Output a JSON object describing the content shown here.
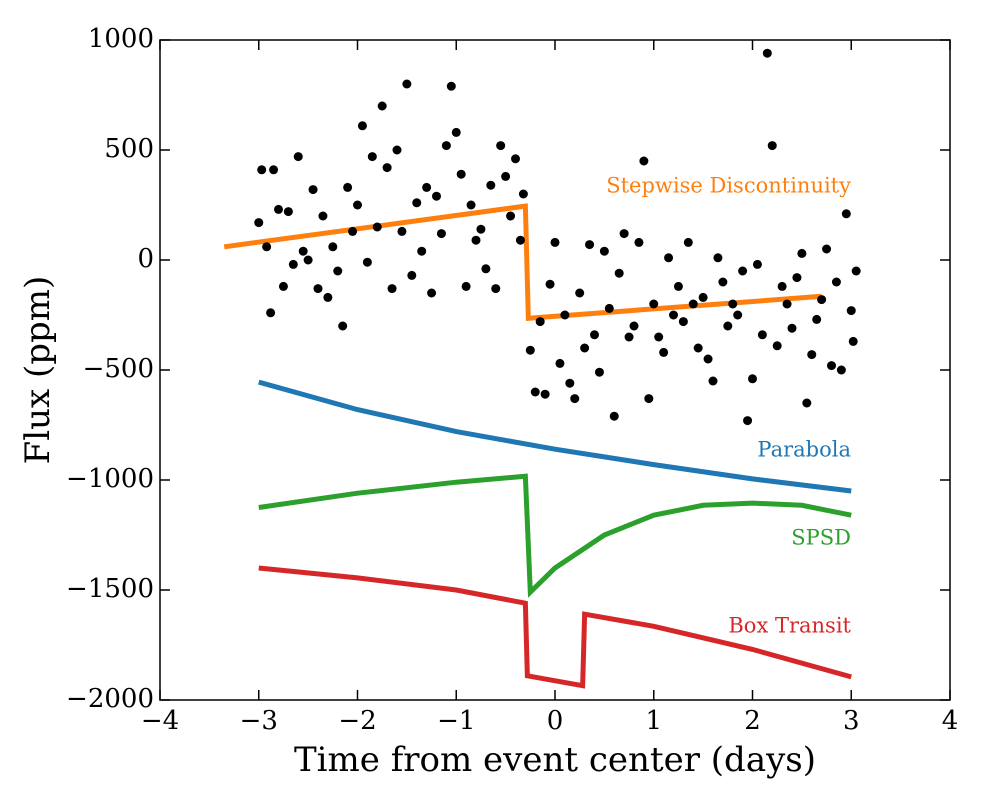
{
  "chart_data": {
    "type": "scatter",
    "xlabel": "Time from event center (days)",
    "ylabel": "Flux (ppm)",
    "xlim": [
      -4,
      4
    ],
    "ylim": [
      -2000,
      1000
    ],
    "xticks": [
      {
        "value": -4,
        "label": "−4"
      },
      {
        "value": -3,
        "label": "−3"
      },
      {
        "value": -2,
        "label": "−2"
      },
      {
        "value": -1,
        "label": "−1"
      },
      0,
      1,
      2,
      3,
      4
    ],
    "yticks": [
      {
        "value": -2000,
        "label": "−2000"
      },
      {
        "value": -1500,
        "label": "−1500"
      },
      {
        "value": -1000,
        "label": "−1000"
      },
      {
        "value": -500,
        "label": "−500"
      },
      0,
      500,
      1000
    ],
    "points": {
      "color": "#000000",
      "x": [
        -3.0,
        -2.97,
        -2.92,
        -2.88,
        -2.85,
        -2.8,
        -2.75,
        -2.7,
        -2.65,
        -2.6,
        -2.55,
        -2.5,
        -2.45,
        -2.4,
        -2.35,
        -2.3,
        -2.25,
        -2.2,
        -2.15,
        -2.1,
        -2.05,
        -2.0,
        -1.95,
        -1.9,
        -1.85,
        -1.8,
        -1.75,
        -1.7,
        -1.65,
        -1.6,
        -1.55,
        -1.5,
        -1.45,
        -1.4,
        -1.35,
        -1.3,
        -1.25,
        -1.2,
        -1.15,
        -1.1,
        -1.05,
        -1.0,
        -0.95,
        -0.9,
        -0.85,
        -0.8,
        -0.75,
        -0.7,
        -0.65,
        -0.6,
        -0.55,
        -0.5,
        -0.45,
        -0.4,
        -0.35,
        -0.32,
        -0.25,
        -0.2,
        -0.15,
        -0.1,
        -0.05,
        0.0,
        0.05,
        0.1,
        0.15,
        0.2,
        0.25,
        0.3,
        0.35,
        0.4,
        0.45,
        0.5,
        0.55,
        0.6,
        0.65,
        0.7,
        0.75,
        0.8,
        0.85,
        0.9,
        0.95,
        1.0,
        1.05,
        1.1,
        1.15,
        1.2,
        1.25,
        1.3,
        1.35,
        1.4,
        1.45,
        1.5,
        1.55,
        1.6,
        1.65,
        1.7,
        1.75,
        1.8,
        1.85,
        1.9,
        1.95,
        2.0,
        2.05,
        2.1,
        2.15,
        2.2,
        2.25,
        2.3,
        2.35,
        2.4,
        2.45,
        2.5,
        2.55,
        2.6,
        2.65,
        2.7,
        2.75,
        2.8,
        2.85,
        2.9,
        2.95,
        3.0,
        3.02,
        3.05
      ],
      "values": [
        170,
        410,
        60,
        -240,
        410,
        230,
        -120,
        220,
        -20,
        470,
        40,
        0,
        320,
        -130,
        200,
        -170,
        60,
        -50,
        -300,
        330,
        130,
        250,
        610,
        -10,
        470,
        150,
        700,
        420,
        -130,
        500,
        130,
        800,
        -70,
        260,
        40,
        330,
        -150,
        290,
        120,
        520,
        790,
        580,
        390,
        -120,
        250,
        90,
        140,
        -40,
        340,
        -130,
        520,
        380,
        200,
        460,
        90,
        300,
        -410,
        -600,
        -280,
        -610,
        -110,
        80,
        -470,
        -250,
        -560,
        -630,
        -150,
        -400,
        70,
        -340,
        -510,
        40,
        -220,
        -710,
        -60,
        120,
        -350,
        -300,
        80,
        450,
        -630,
        -200,
        -350,
        -420,
        10,
        -250,
        -120,
        -280,
        80,
        -200,
        -400,
        -170,
        -450,
        -550,
        10,
        -100,
        -300,
        -200,
        -250,
        -50,
        -730,
        -540,
        -20,
        -340,
        940,
        520,
        -390,
        -120,
        -200,
        -310,
        -80,
        30,
        -650,
        -430,
        -270,
        -180,
        50,
        -480,
        -100,
        -500,
        210,
        -230,
        -370,
        -50
      ]
    },
    "series": [
      {
        "name": "Stepwise Discontinuity",
        "color": "#ff7f0e",
        "x": [
          -3.35,
          -0.3,
          -0.27,
          2.7
        ],
        "values": [
          60,
          245,
          -265,
          -165
        ]
      },
      {
        "name": "Parabola",
        "color": "#1f77b4",
        "x": [
          -3,
          -2,
          -1,
          0,
          1,
          2,
          3
        ],
        "values": [
          -555,
          -680,
          -780,
          -860,
          -930,
          -995,
          -1050
        ]
      },
      {
        "name": "SPSD",
        "color": "#2ca02c",
        "x": [
          -3,
          -2,
          -1,
          -0.3,
          -0.25,
          0,
          0.5,
          1,
          1.5,
          2,
          2.5,
          3
        ],
        "values": [
          -1125,
          -1060,
          -1010,
          -983,
          -1510,
          -1400,
          -1250,
          -1160,
          -1115,
          -1105,
          -1115,
          -1160
        ]
      },
      {
        "name": "Box Transit",
        "color": "#d62728",
        "x": [
          -3,
          -2,
          -1,
          -0.3,
          -0.28,
          0.28,
          0.3,
          1,
          2,
          3
        ],
        "values": [
          -1400,
          -1445,
          -1500,
          -1560,
          -1890,
          -1935,
          -1610,
          -1665,
          -1770,
          -1895
        ]
      }
    ]
  }
}
